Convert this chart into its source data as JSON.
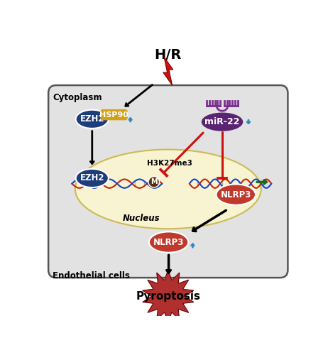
{
  "title": "H/R",
  "bg_outer": "#ffffff",
  "bg_cell": "#e2e2e2",
  "bg_nucleus": "#f8f3d0",
  "cell_label": "Endothelial cells",
  "cytoplasm_label": "Cytoplasm",
  "nucleus_label": "Nucleus",
  "ezh2_color": "#1e3d7b",
  "hsp90_color": "#d4a017",
  "mir22_color": "#5b2472",
  "nlrp3_color": "#c0392b",
  "red_color": "#cc1111",
  "blue_up_color": "#2e8bbf",
  "blue_down_color": "#2e8bbf",
  "green_color": "#1a6b1a",
  "m_color": "#5c2d0a",
  "dna_red": "#cc2200",
  "dna_blue": "#1144cc",
  "pyroptosis_color": "#b03030",
  "mir22_icon_color": "#7b3090",
  "lightning_color": "#cc1111"
}
